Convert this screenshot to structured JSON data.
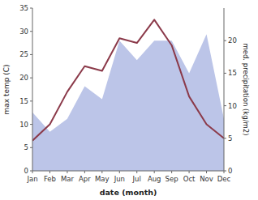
{
  "chart_data": {
    "type": "line",
    "categories": [
      "Jan",
      "Feb",
      "Mar",
      "Apr",
      "May",
      "Jun",
      "Jul",
      "Aug",
      "Sep",
      "Oct",
      "Nov",
      "Dec"
    ],
    "x_label": "date (month)",
    "y_label": "max temp (C)",
    "y2_label": "med. precipitation (kg/m2)",
    "series": [
      {
        "type": "area",
        "axis": "y2",
        "color": "#bcc5e8",
        "values": [
          9.0,
          6.0,
          8.0,
          13.0,
          11.0,
          20.0,
          17.0,
          20.0,
          20.0,
          15.0,
          21.0,
          8.0
        ]
      },
      {
        "type": "line",
        "color": "#8B3A4A",
        "values": [
          6.5,
          10.0,
          17.0,
          22.5,
          21.5,
          28.5,
          27.5,
          32.5,
          27.0,
          16.0,
          10.0,
          7.0
        ]
      }
    ],
    "ylim": [
      0,
      35
    ],
    "yticks": [
      0,
      5,
      10,
      15,
      20,
      25,
      30,
      35
    ],
    "y2lim": [
      0,
      25
    ],
    "y2ticks": [
      0,
      5,
      10,
      15,
      20
    ],
    "grid": false
  }
}
